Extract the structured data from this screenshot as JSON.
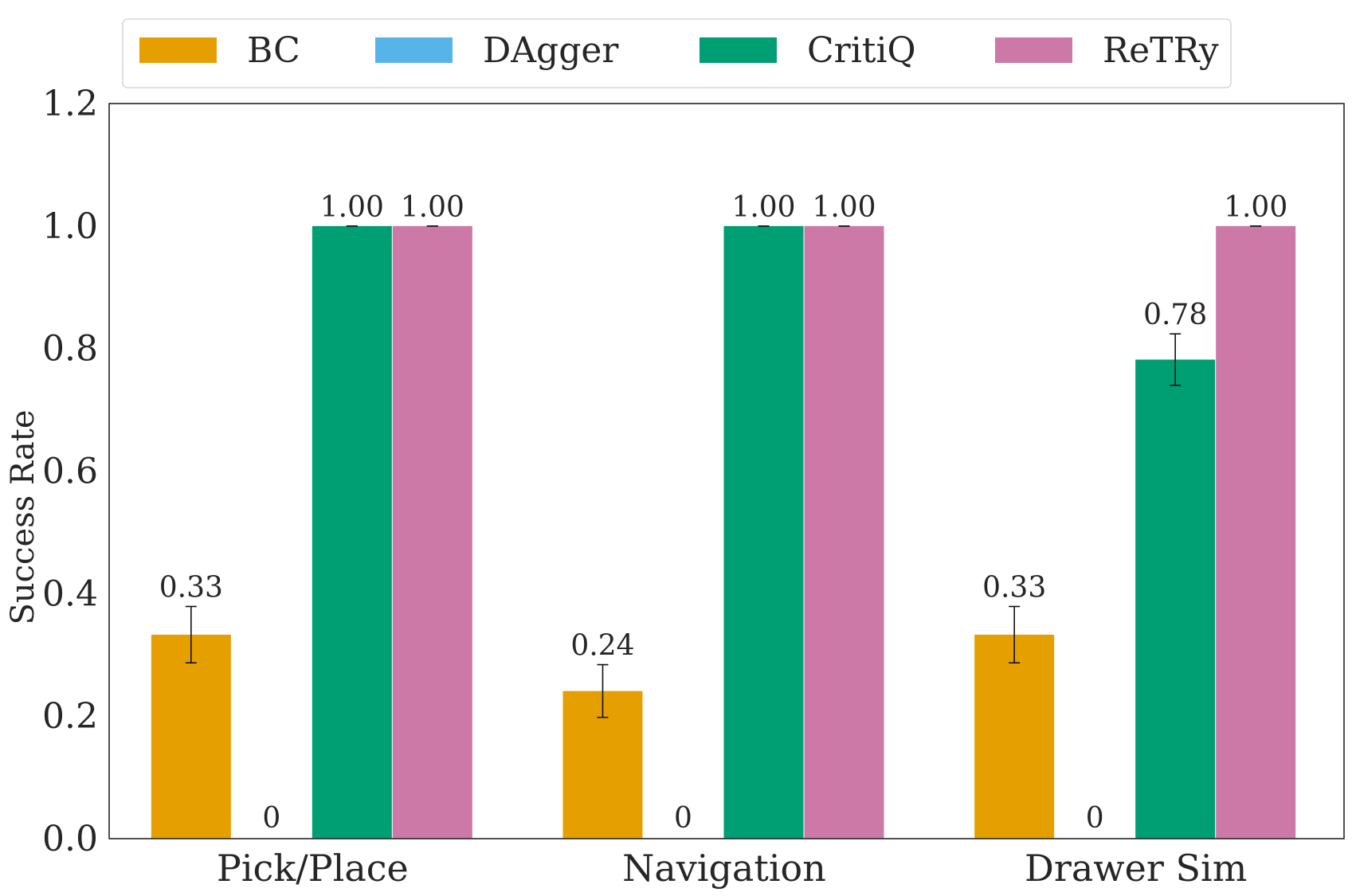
{
  "chart_data": {
    "type": "bar",
    "categories": [
      "Pick/Place",
      "Navigation",
      "Drawer Sim"
    ],
    "series": [
      {
        "name": "BC",
        "color": "#E69F00",
        "values": [
          0.333,
          0.241,
          0.333
        ],
        "errors": [
          0.046,
          0.043,
          0.046
        ],
        "labels": [
          "0.33",
          "0.24",
          "0.33"
        ]
      },
      {
        "name": "DAgger",
        "color": "#56B4E9",
        "values": [
          0,
          0,
          0
        ],
        "errors": [
          0,
          0,
          0
        ],
        "labels": [
          "0",
          "0",
          "0"
        ]
      },
      {
        "name": "CritiQ",
        "color": "#009E73",
        "values": [
          1.0,
          1.0,
          0.782
        ],
        "errors": [
          0,
          0,
          0.042
        ],
        "labels": [
          "1.00",
          "1.00",
          "0.78"
        ]
      },
      {
        "name": "ReTRy",
        "color": "#CC79A7",
        "values": [
          1.0,
          1.0,
          1.0
        ],
        "errors": [
          0,
          0,
          0
        ],
        "labels": [
          "1.00",
          "1.00",
          "1.00"
        ]
      }
    ],
    "xlabel": "",
    "ylabel": "Success Rate",
    "ylim": [
      0,
      1.2
    ],
    "yticks": [
      "0.0",
      "0.2",
      "0.4",
      "0.6",
      "0.8",
      "1.0",
      "1.2"
    ],
    "grid": false,
    "legend_position": "top-center"
  }
}
